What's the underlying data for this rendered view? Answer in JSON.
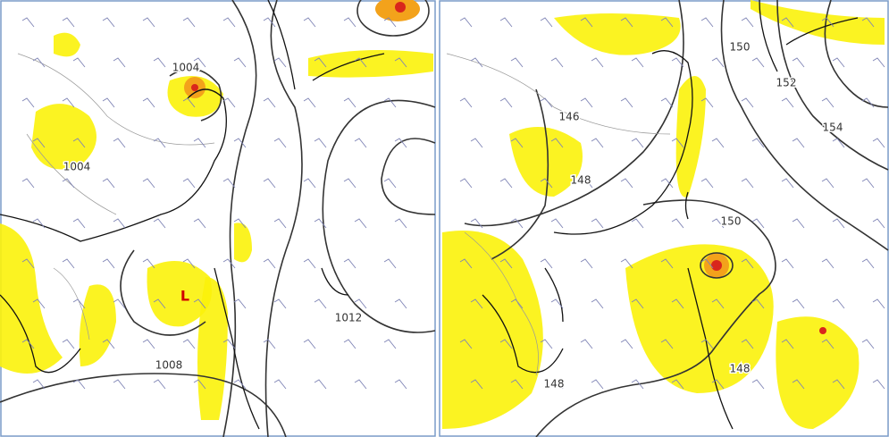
{
  "panels": [
    {
      "labels": [
        "1004",
        "1004",
        "L",
        "1008",
        "1012"
      ]
    },
    {
      "labels": [
        "150",
        "152",
        "154",
        "146",
        "148",
        "150",
        "148",
        "148"
      ]
    }
  ]
}
